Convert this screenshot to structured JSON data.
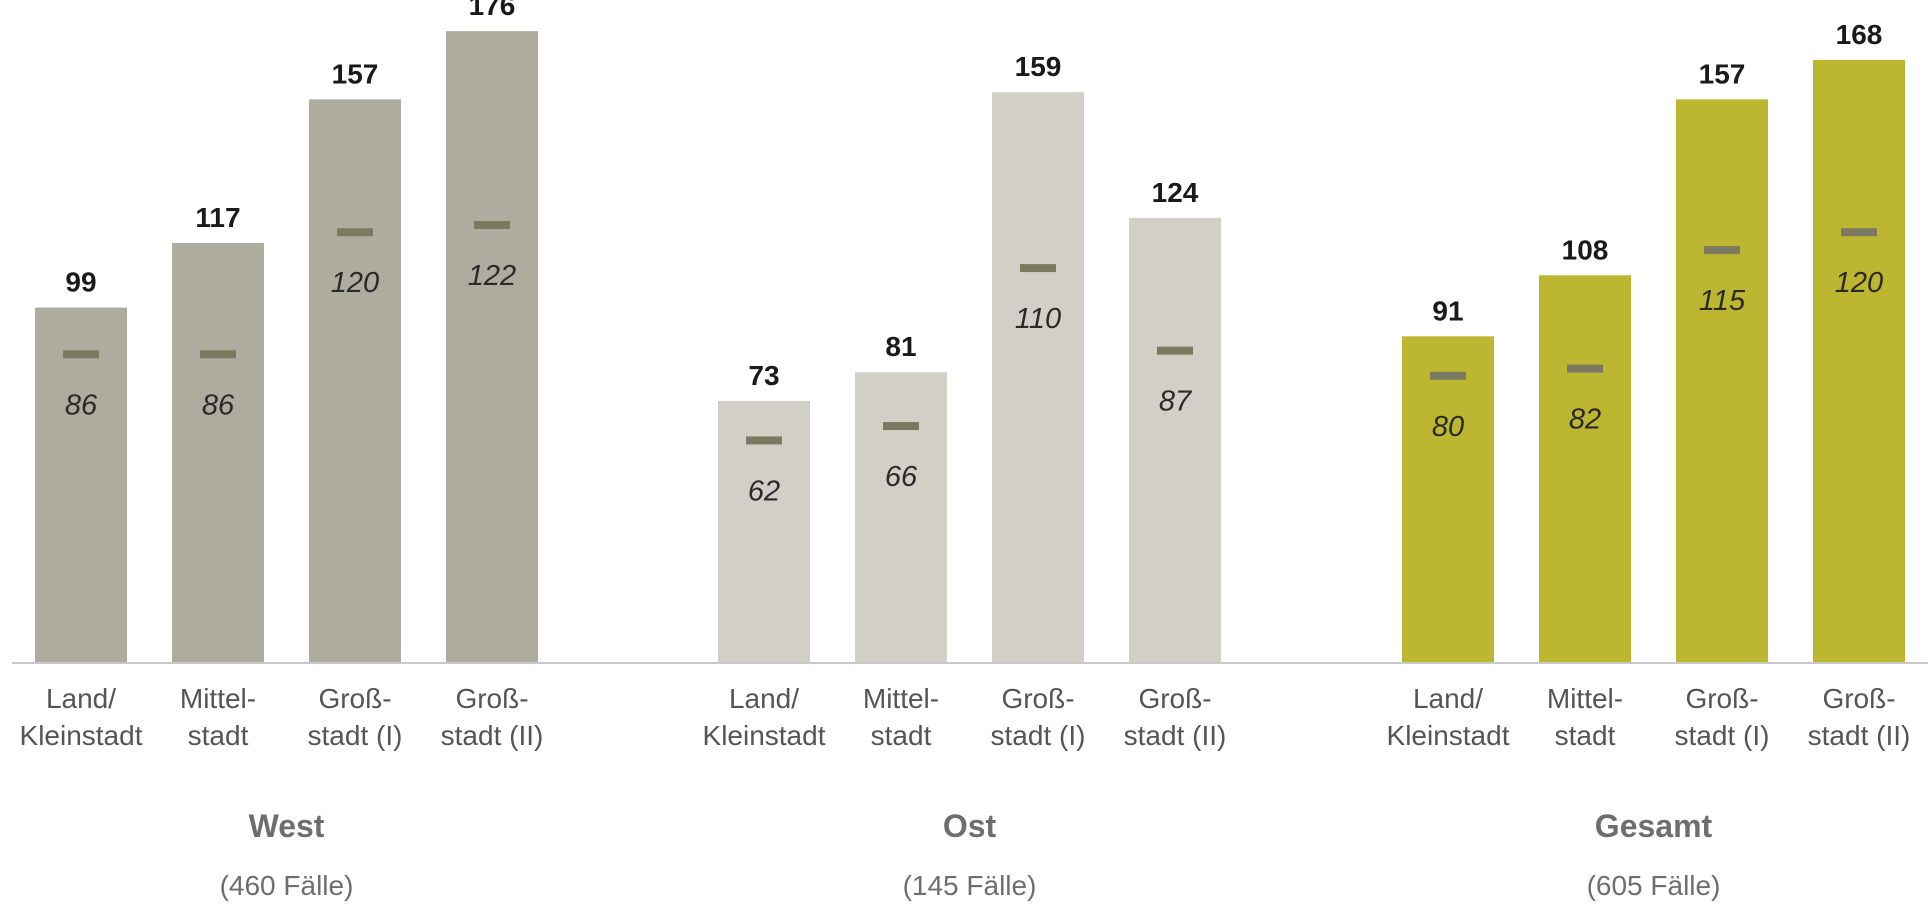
{
  "chart_data": {
    "type": "bar",
    "ylim": [
      0,
      190
    ],
    "grid": false,
    "legend": "none",
    "colors": {
      "West": "#aeac9e",
      "Ost": "#d2cfc6",
      "Gesamt": "#bdb630",
      "marker": "#7b7a60"
    },
    "categories": [
      [
        "Land/",
        "Kleinstadt"
      ],
      [
        "Mittel-",
        "stadt"
      ],
      [
        "Groß-",
        "stadt (I)"
      ],
      [
        "Groß-",
        "stadt (II)"
      ]
    ],
    "groups": [
      {
        "name": "West",
        "cases": "(460 Fälle)",
        "values": [
          99,
          117,
          157,
          176
        ],
        "inner_values": [
          86,
          86,
          120,
          122
        ]
      },
      {
        "name": "Ost",
        "cases": "(145 Fälle)",
        "values": [
          73,
          81,
          159,
          124
        ],
        "inner_values": [
          62,
          66,
          110,
          87
        ]
      },
      {
        "name": "Gesamt",
        "cases": "(605 Fälle)",
        "values": [
          91,
          108,
          157,
          168
        ],
        "inner_values": [
          80,
          82,
          115,
          120
        ]
      }
    ]
  }
}
